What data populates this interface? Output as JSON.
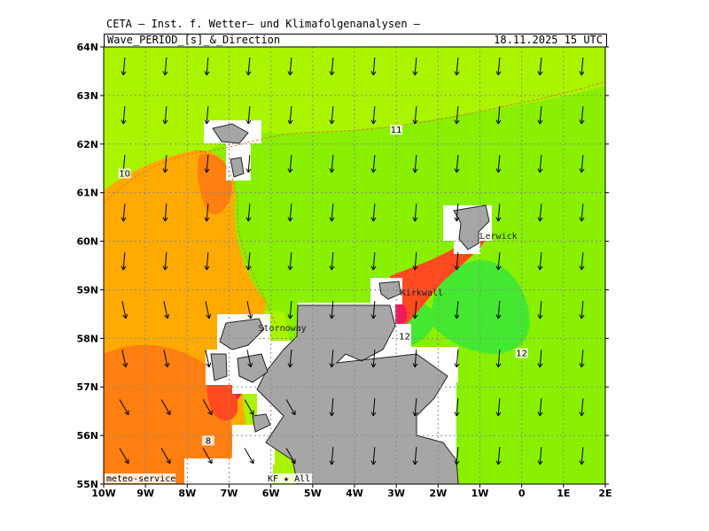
{
  "header": {
    "institute": "CETA — Inst. f. Wetter— und Klimafolgenanalysen —",
    "title": "Wave_PERIOD_[s]_&_Direction",
    "valid_time": "18.11.2025 15 UTC"
  },
  "axes": {
    "lat_labels": [
      "64N",
      "63N",
      "62N",
      "61N",
      "60N",
      "59N",
      "58N",
      "57N",
      "56N",
      "55N"
    ],
    "lon_labels": [
      "10W",
      "9W",
      "8W",
      "7W",
      "6W",
      "5W",
      "4W",
      "3W",
      "2W",
      "1W",
      "0",
      "1E",
      "2E"
    ]
  },
  "contour_labels": [
    {
      "text": "11",
      "lon": -3.0,
      "lat": 62.25
    },
    {
      "text": "10",
      "lon": -9.5,
      "lat": 61.35
    },
    {
      "text": "12",
      "lon": -2.8,
      "lat": 58.0
    },
    {
      "text": "12",
      "lon": -0.0,
      "lat": 57.65
    },
    {
      "text": "8",
      "lon": -7.5,
      "lat": 55.85
    }
  ],
  "places": [
    {
      "name": "Lerwick",
      "lon": -1.0,
      "lat": 60.05
    },
    {
      "name": "Kirkwall",
      "lon": -2.9,
      "lat": 58.88
    },
    {
      "name": "Stornoway",
      "lon": -6.3,
      "lat": 58.15
    }
  ],
  "footer": {
    "credit": "meteo-service",
    "legend": "KF ★ All"
  },
  "colors": {
    "yellow_green": "#aaf400",
    "lime": "#88f000",
    "green": "#44e830",
    "orange": "#ffaa00",
    "dark_orange": "#ff7f10",
    "red_orange": "#ff4a20",
    "crimson": "#ee1c5a",
    "land": "#a6a6a6"
  }
}
